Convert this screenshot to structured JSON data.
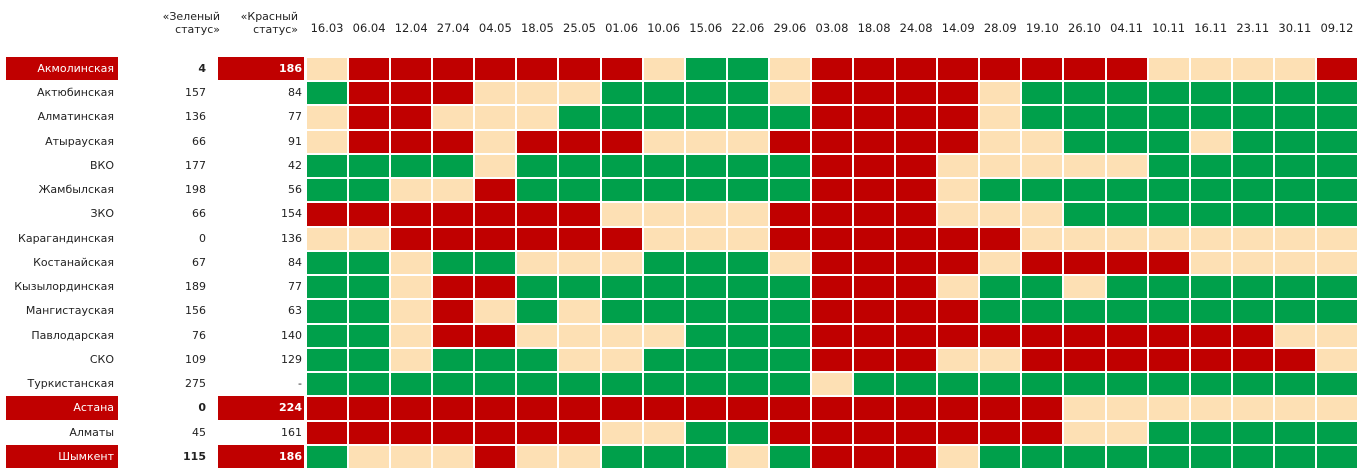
{
  "table": {
    "headers": {
      "green": "«Зеленый статус»",
      "red": "«Красный статус»"
    },
    "dates": [
      "16.03",
      "06.04",
      "12.04",
      "27.04",
      "04.05",
      "18.05",
      "25.05",
      "01.06",
      "10.06",
      "15.06",
      "22.06",
      "29.06",
      "03.08",
      "18.08",
      "24.08",
      "14.09",
      "28.09",
      "19.10",
      "26.10",
      "04.11",
      "10.11",
      "16.11",
      "23.11",
      "30.11",
      "09.12"
    ],
    "colors": {
      "R": "#c00000",
      "G": "#00a04b",
      "Y": "#fde0b4"
    },
    "highlight_color": "#c00000",
    "rows": [
      {
        "name": "Акмолинская",
        "green": "4",
        "red": "186",
        "highlight": true,
        "cells": "YRRRRRRRYGGYRRRRRRRRYYYYR"
      },
      {
        "name": "Актюбинская",
        "green": "157",
        "red": "84",
        "cells": "GRRRYYYGGGGYRRRRYGGGGGGGG"
      },
      {
        "name": "Алматинская",
        "green": "136",
        "red": "77",
        "cells": "YRRYYYGGGGGGRRRRYGGGGGGGG"
      },
      {
        "name": "Атырауская",
        "green": "66",
        "red": "91",
        "cells": "YRRRYRRRYYYRRRRRYYGGGYGGG"
      },
      {
        "name": "ВКО",
        "green": "177",
        "red": "42",
        "cells": "GGGGYGGGGGGGRRRYYYYYGGGGG"
      },
      {
        "name": "Жамбылская",
        "green": "198",
        "red": "56",
        "cells": "GGYYRGGGGGGGRRRYGGGGGGGGG"
      },
      {
        "name": "ЗКО",
        "green": "66",
        "red": "154",
        "cells": "RRRRRRRYYYYRRRRYYYGGGGGGG"
      },
      {
        "name": "Карагандинская",
        "green": "0",
        "red": "136",
        "cells": "YYRRRRRRYYYRRRRRRYYYYYYYY"
      },
      {
        "name": "Костанайская",
        "green": "67",
        "red": "84",
        "cells": "GGYGGYYYGGGYRRRRYRRRRYYYY"
      },
      {
        "name": "Кызылординская",
        "green": "189",
        "red": "77",
        "cells": "GGYRRGGGGGGGRRRYGGYGGGGGG"
      },
      {
        "name": "Мангистауская",
        "green": "156",
        "red": "63",
        "cells": "GGYRYGYGGGGGRRRRGGGGGGGGG"
      },
      {
        "name": "Павлодарская",
        "green": "76",
        "red": "140",
        "cells": "GGYRRYYYYGGGRRRRRRRRRRRYY"
      },
      {
        "name": "СКО",
        "green": "109",
        "red": "129",
        "cells": "GGYGGGYYGGGGRRRYYRRRRRRRY"
      },
      {
        "name": "Туркистанская",
        "green": "275",
        "red": "-",
        "cells": "GGGGGGGGGGGGYGGGGGGGGGGGG"
      },
      {
        "name": "Астана",
        "green": "0",
        "red": "224",
        "highlight": true,
        "cells": "RRRRRRRRRRRRRRRRRRYYYYYYY"
      },
      {
        "name": "Алматы",
        "green": "45",
        "red": "161",
        "cells": "RRRRRRRYYGGRRRRRRRYYGGGGG"
      },
      {
        "name": "Шымкент",
        "green": "115",
        "red": "186",
        "highlight": true,
        "cells": "GYYYRYYGGGYGRRRYGGGGGGGGG"
      }
    ]
  }
}
